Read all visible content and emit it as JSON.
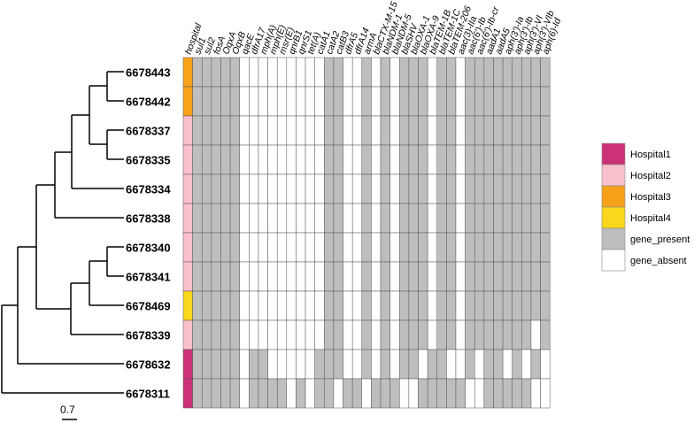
{
  "heatmap": {
    "columns": [
      "hospital",
      "sul1",
      "sul2",
      "fosA",
      "OqxA",
      "OqxB",
      "qacE",
      "dfrA17",
      "mph(A)",
      "mph(E)",
      "msr(E)",
      "qnrB1",
      "qnrS1",
      "tet(A)",
      "catA1",
      "catA2",
      "catB3",
      "dfrA5",
      "dfrA14",
      "armA",
      "blaCTX-M-15",
      "blaNDM-1",
      "blaNDM-5",
      "blaSHV",
      "blaOXA-1",
      "blaOXA-9",
      "blaTEM-1B",
      "blaTEM-1C",
      "blaTEM-206",
      "aac(3)-IIa",
      "aac(6')-Ib",
      "aac(6')-Ib-cr",
      "aadA1",
      "aadA5",
      "aph(3')-Ia",
      "aph(3')-Ib",
      "aph(3')-VI",
      "aph(3')-VIb",
      "aph(6)-Id"
    ],
    "rows": [
      {
        "id": "6678443",
        "hospital": "Hospital3",
        "genes": "11111000000000110010101110110111111111"
      },
      {
        "id": "6678442",
        "hospital": "Hospital3",
        "genes": "11111000000000110010101110110111111111"
      },
      {
        "id": "6678337",
        "hospital": "Hospital2",
        "genes": "11111000000000110010101110110111111111"
      },
      {
        "id": "6678335",
        "hospital": "Hospital2",
        "genes": "11111000000000110010101110110111111111"
      },
      {
        "id": "6678334",
        "hospital": "Hospital2",
        "genes": "11111000000000110010101110110111111111"
      },
      {
        "id": "6678338",
        "hospital": "Hospital2",
        "genes": "11111000000000110010101110110111111111"
      },
      {
        "id": "6678340",
        "hospital": "Hospital2",
        "genes": "11111000000000110010101110110111111111"
      },
      {
        "id": "6678341",
        "hospital": "Hospital2",
        "genes": "11111000000000110010101110110111111111"
      },
      {
        "id": "6678469",
        "hospital": "Hospital4",
        "genes": "11111000000000110010101110110111111111"
      },
      {
        "id": "6678339",
        "hospital": "Hospital2",
        "genes": "11111000000000110010101110110111111101"
      },
      {
        "id": "6678632",
        "hospital": "Hospital1",
        "genes": "11111011000001110010101101100101101010"
      },
      {
        "id": "6678311",
        "hospital": "Hospital1",
        "genes": "11111011110101101101110011111001111100"
      }
    ]
  },
  "legend": [
    {
      "label": "Hospital1",
      "color": "#cc3377"
    },
    {
      "label": "Hospital2",
      "color": "#f9c0cb"
    },
    {
      "label": "Hospital3",
      "color": "#f7a11a"
    },
    {
      "label": "Hospital4",
      "color": "#f9d71c"
    },
    {
      "label": "gene_present",
      "color": "#bebebe"
    },
    {
      "label": "gene_absent",
      "color": "#ffffff"
    }
  ],
  "scale_bar": {
    "label": "0.7"
  }
}
